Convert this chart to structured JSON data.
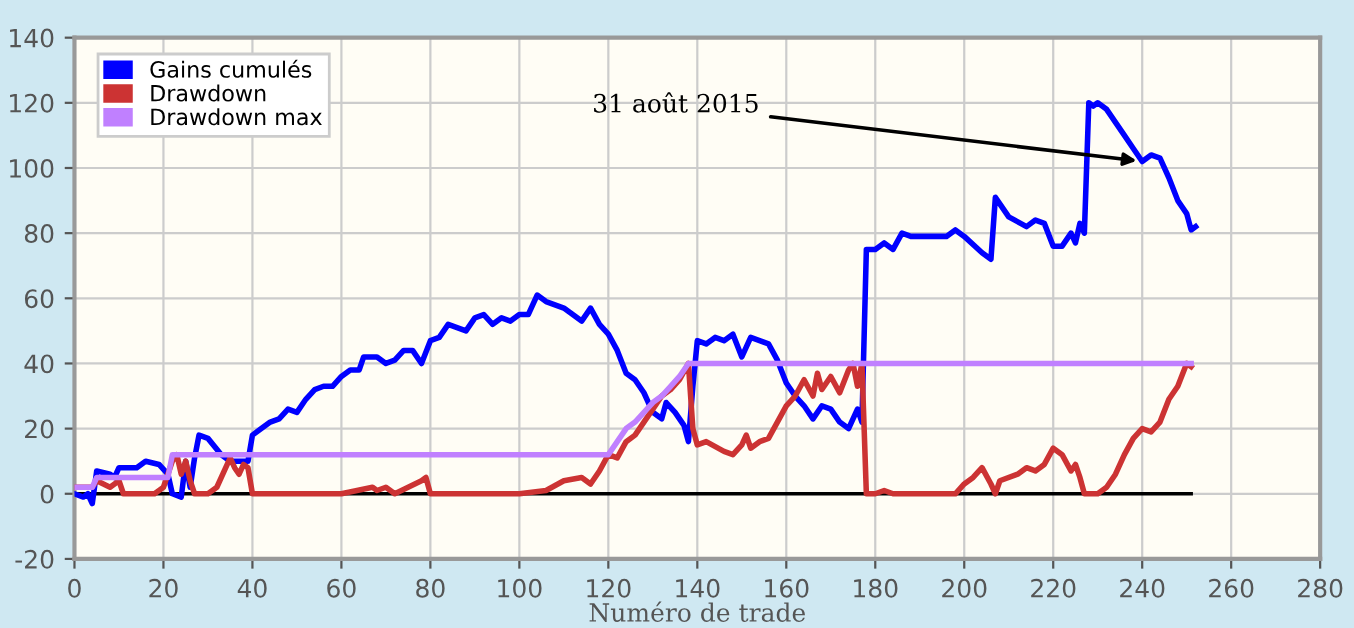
{
  "chart_data": {
    "type": "line",
    "xlabel": "Numéro de trade",
    "xlim": [
      0,
      280
    ],
    "xticks": [
      0,
      20,
      40,
      60,
      80,
      100,
      120,
      140,
      160,
      180,
      200,
      220,
      240,
      260,
      280
    ],
    "ylim": [
      -20,
      140
    ],
    "yticks": [
      -20,
      0,
      20,
      40,
      60,
      80,
      100,
      120,
      140
    ],
    "grid": true,
    "legend": "top left",
    "line_style": "solid",
    "marker": "none",
    "annotations": [
      {
        "text": "31 août 2015",
        "x": 240,
        "y": 102
      }
    ],
    "series": [
      {
        "name": "Gains cumulés",
        "color": "#0000ff",
        "x": [
          0,
          2,
          3,
          4,
          5,
          8,
          9,
          10,
          12,
          14,
          16,
          19,
          21,
          22,
          24,
          25,
          26,
          27,
          28,
          30,
          33,
          35,
          37,
          39,
          40,
          42,
          44,
          46,
          48,
          50,
          52,
          54,
          56,
          58,
          60,
          62,
          64,
          65,
          68,
          70,
          72,
          74,
          76,
          78,
          80,
          82,
          84,
          86,
          88,
          90,
          92,
          94,
          96,
          98,
          100,
          102,
          104,
          106,
          110,
          114,
          116,
          118,
          120,
          122,
          124,
          126,
          128,
          130,
          132,
          133,
          135,
          137,
          138,
          139,
          140,
          142,
          144,
          146,
          148,
          150,
          152,
          154,
          156,
          158,
          160,
          162,
          164,
          166,
          168,
          170,
          172,
          174,
          176,
          177,
          178,
          180,
          182,
          184,
          186,
          188,
          192,
          196,
          198,
          200,
          204,
          206,
          207,
          210,
          214,
          216,
          218,
          220,
          222,
          224,
          225,
          226,
          227,
          228,
          229,
          230,
          232,
          236,
          238,
          240,
          242,
          244,
          246,
          248,
          250,
          251,
          252
        ],
        "values": [
          0,
          -1,
          0,
          -3,
          7,
          6,
          5,
          8,
          8,
          8,
          10,
          9,
          6,
          0,
          -1,
          10,
          2,
          11,
          18,
          17,
          12,
          10,
          10,
          10,
          18,
          20,
          22,
          23,
          26,
          25,
          29,
          32,
          33,
          33,
          36,
          38,
          38,
          42,
          42,
          40,
          41,
          44,
          44,
          40,
          47,
          48,
          52,
          51,
          50,
          54,
          55,
          52,
          54,
          53,
          55,
          55,
          61,
          59,
          57,
          53,
          57,
          52,
          49,
          44,
          37,
          35,
          31,
          25,
          23,
          28,
          25,
          21,
          16,
          33,
          47,
          46,
          48,
          47,
          49,
          42,
          48,
          47,
          46,
          41,
          34,
          30,
          27,
          23,
          27,
          26,
          22,
          20,
          26,
          22,
          75,
          75,
          77,
          75,
          80,
          79,
          79,
          79,
          81,
          79,
          74,
          72,
          91,
          85,
          82,
          84,
          83,
          76,
          76,
          80,
          77,
          83,
          80,
          120,
          119,
          120,
          118,
          110,
          106,
          102,
          104,
          103,
          97,
          90,
          86,
          81,
          82
        ]
      },
      {
        "name": "Drawdown",
        "color": "#cc3333",
        "x": [
          0,
          4,
          5,
          8,
          10,
          11,
          14,
          18,
          20,
          22,
          23,
          24,
          25,
          26,
          27,
          30,
          32,
          34,
          35,
          36,
          37,
          38,
          39,
          40,
          60,
          67,
          68,
          70,
          72,
          78,
          79,
          80,
          100,
          106,
          110,
          114,
          116,
          118,
          120,
          122,
          124,
          126,
          128,
          130,
          132,
          134,
          136,
          138,
          139,
          140,
          142,
          146,
          148,
          150,
          151,
          152,
          154,
          156,
          158,
          160,
          162,
          164,
          166,
          167,
          168,
          170,
          172,
          174,
          175,
          176,
          177,
          178,
          180,
          182,
          184,
          190,
          198,
          200,
          202,
          204,
          206,
          207,
          208,
          212,
          214,
          216,
          218,
          220,
          222,
          224,
          225,
          226,
          227,
          230,
          232,
          234,
          236,
          238,
          240,
          242,
          244,
          246,
          248,
          250,
          251
        ],
        "values": [
          2,
          2,
          4,
          2,
          4,
          0,
          0,
          0,
          2,
          10,
          12,
          6,
          10,
          4,
          0,
          0,
          2,
          8,
          11,
          8,
          6,
          9,
          8,
          0,
          0,
          2,
          1,
          2,
          0,
          4,
          5,
          0,
          0,
          1,
          4,
          5,
          3,
          7,
          12,
          11,
          16,
          18,
          22,
          26,
          30,
          32,
          35,
          40,
          20,
          15,
          16,
          13,
          12,
          15,
          18,
          14,
          16,
          17,
          22,
          27,
          30,
          35,
          30,
          37,
          32,
          36,
          31,
          38,
          40,
          33,
          40,
          0,
          0,
          1,
          0,
          0,
          0,
          3,
          5,
          8,
          3,
          0,
          4,
          6,
          8,
          7,
          9,
          14,
          12,
          7,
          9,
          5,
          0,
          0,
          2,
          6,
          12,
          17,
          20,
          19,
          22,
          29,
          33,
          40,
          39
        ]
      },
      {
        "name": "Drawdown max",
        "color": "#c080ff",
        "x": [
          0,
          4,
          5,
          21,
          22,
          120,
          122,
          124,
          126,
          128,
          130,
          132,
          134,
          136,
          138,
          251
        ],
        "values": [
          2,
          2,
          5,
          5,
          12,
          12,
          16,
          20,
          22,
          25,
          28,
          30,
          33,
          36,
          40,
          40
        ]
      },
      {
        "color": "#000000",
        "x": [
          0,
          251
        ],
        "values": [
          0,
          0
        ]
      }
    ]
  }
}
